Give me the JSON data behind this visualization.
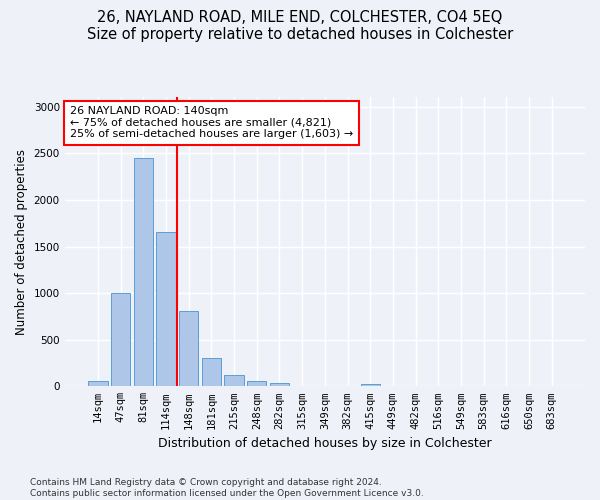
{
  "title": "26, NAYLAND ROAD, MILE END, COLCHESTER, CO4 5EQ",
  "subtitle": "Size of property relative to detached houses in Colchester",
  "xlabel": "Distribution of detached houses by size in Colchester",
  "ylabel": "Number of detached properties",
  "categories": [
    "14sqm",
    "47sqm",
    "81sqm",
    "114sqm",
    "148sqm",
    "181sqm",
    "215sqm",
    "248sqm",
    "282sqm",
    "315sqm",
    "349sqm",
    "382sqm",
    "415sqm",
    "449sqm",
    "482sqm",
    "516sqm",
    "549sqm",
    "583sqm",
    "616sqm",
    "650sqm",
    "683sqm"
  ],
  "values": [
    60,
    1000,
    2450,
    1660,
    810,
    305,
    120,
    55,
    40,
    0,
    0,
    0,
    30,
    0,
    0,
    0,
    0,
    0,
    0,
    0,
    0
  ],
  "bar_color": "#aec6e8",
  "bar_edge_color": "#5a9fd4",
  "vline_color": "red",
  "vline_pos": 3.5,
  "annotation_line1": "26 NAYLAND ROAD: 140sqm",
  "annotation_line2": "← 75% of detached houses are smaller (4,821)",
  "annotation_line3": "25% of semi-detached houses are larger (1,603) →",
  "ylim": [
    0,
    3100
  ],
  "yticks": [
    0,
    500,
    1000,
    1500,
    2000,
    2500,
    3000
  ],
  "footer": "Contains HM Land Registry data © Crown copyright and database right 2024.\nContains public sector information licensed under the Open Government Licence v3.0.",
  "background_color": "#eef2f8",
  "grid_color": "#ffffff",
  "title_fontsize": 10.5,
  "subtitle_fontsize": 9.5,
  "xlabel_fontsize": 9,
  "ylabel_fontsize": 8.5,
  "tick_fontsize": 7.5,
  "annotation_fontsize": 8,
  "footer_fontsize": 6.5
}
